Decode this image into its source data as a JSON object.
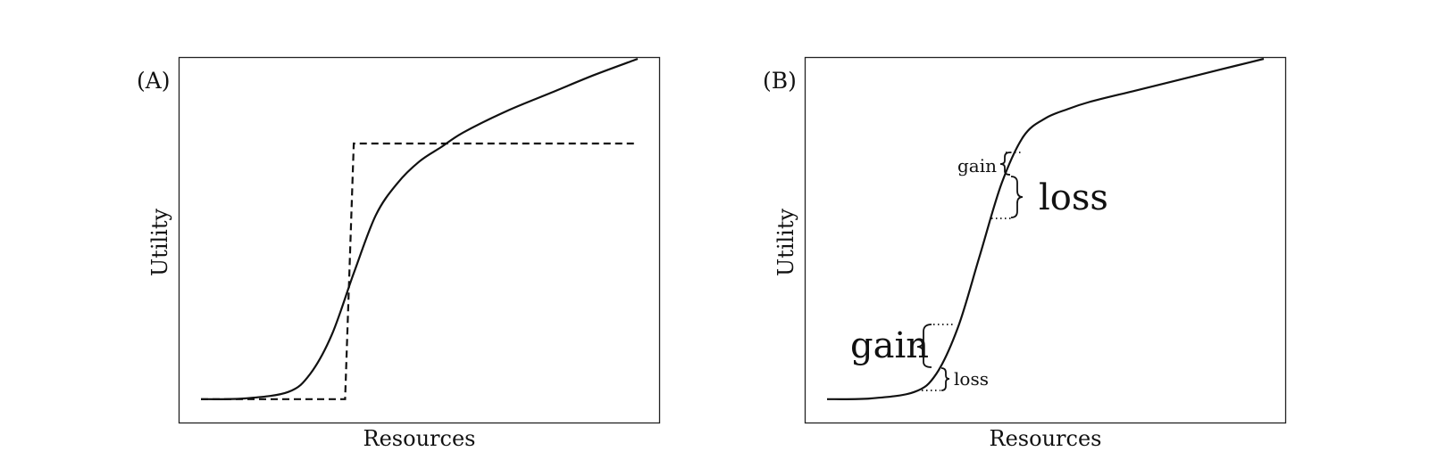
{
  "chart_data": [
    {
      "type": "line",
      "panel_label": "(A)",
      "xlabel": "Resources",
      "ylabel": "Utility",
      "x_ticks": [],
      "y_ticks": [],
      "xlim": [
        0,
        10
      ],
      "ylim": [
        0,
        10
      ],
      "grid": false,
      "series": [
        {
          "style": "solid",
          "x": [
            0,
            1,
            2,
            2.5,
            3,
            3.5,
            4,
            4.5,
            5,
            5.5,
            6,
            7,
            8,
            9,
            10
          ],
          "y": [
            0.5,
            0.52,
            0.7,
            1.2,
            2.3,
            4.0,
            5.6,
            6.5,
            7.1,
            7.5,
            7.9,
            8.5,
            9.0,
            9.5,
            9.95
          ]
        },
        {
          "style": "dashed",
          "x": [
            0,
            3.3,
            3.5,
            10
          ],
          "y": [
            0.5,
            0.5,
            7.6,
            7.6
          ]
        }
      ]
    },
    {
      "type": "line",
      "panel_label": "(B)",
      "xlabel": "Resources",
      "ylabel": "Utility",
      "x_ticks": [],
      "y_ticks": [],
      "xlim": [
        0,
        10
      ],
      "ylim": [
        0,
        10
      ],
      "grid": false,
      "series": [
        {
          "style": "solid",
          "x": [
            0,
            1,
            2,
            2.5,
            3,
            3.5,
            4,
            4.5,
            5,
            5.5,
            6,
            7,
            8,
            9,
            10
          ],
          "y": [
            0.5,
            0.52,
            0.7,
            1.2,
            2.5,
            4.5,
            6.5,
            7.8,
            8.3,
            8.55,
            8.75,
            9.05,
            9.35,
            9.65,
            9.95
          ]
        }
      ],
      "annotations": [
        {
          "text": "gain",
          "size": "large",
          "position": "lower-left, above curve"
        },
        {
          "text": "loss",
          "size": "small",
          "position": "lower-left, below curve"
        },
        {
          "text": "gain",
          "size": "small",
          "position": "upper, above curve"
        },
        {
          "text": "loss",
          "size": "large",
          "position": "upper, below curve"
        }
      ]
    }
  ]
}
